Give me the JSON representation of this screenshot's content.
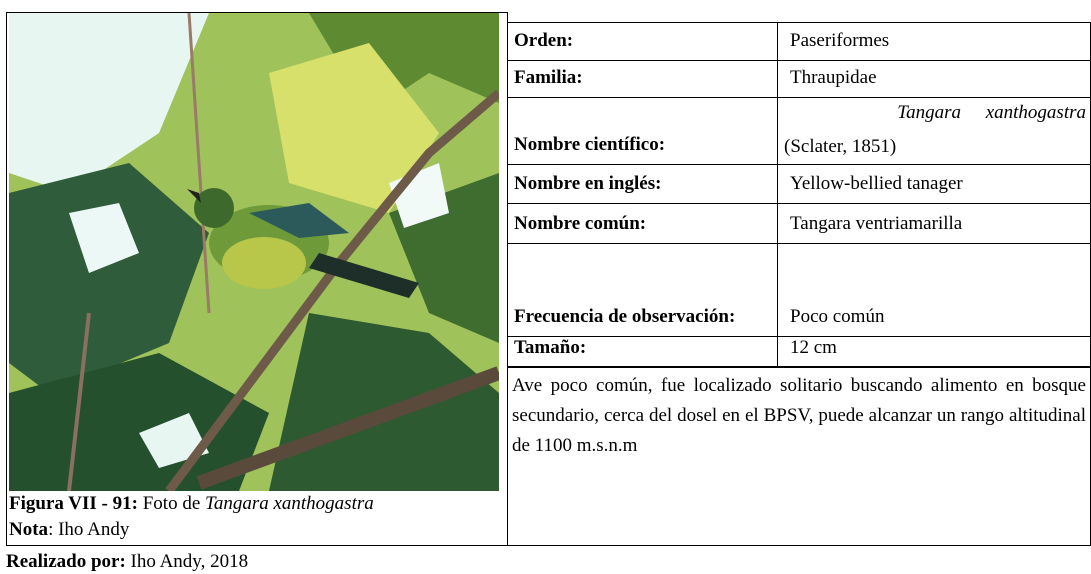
{
  "figure": {
    "caption_label": "Figura VII - 91:",
    "caption_text": " Foto de ",
    "caption_species": "Tangara xanthogastra",
    "note_label": "Nota",
    "note_text": ": Iho Andy"
  },
  "table": {
    "rows": [
      [
        "Orden:",
        "Paseriformes"
      ],
      [
        "Familia:",
        "Thraupidae"
      ],
      [
        "Nombre científico:",
        "Tangara xanthogastra",
        "(Sclater, 1851)"
      ],
      [
        "Nombre en inglés:",
        "Yellow-bellied tanager"
      ],
      [
        "Nombre común:",
        "Tangara ventriamarilla"
      ],
      [
        "Frecuencia de observación:",
        "Poco común"
      ],
      [
        "Tamaño:",
        "12 cm"
      ]
    ]
  },
  "description": "Ave poco común, fue localizado solitario buscando alimento en bosque secundario, cerca del dosel en el BPSV, puede alcanzar un rango altitudinal de 1100 m.s.n.m",
  "footer": {
    "label": "Realizado por:",
    "text": " Iho Andy, 2018"
  }
}
